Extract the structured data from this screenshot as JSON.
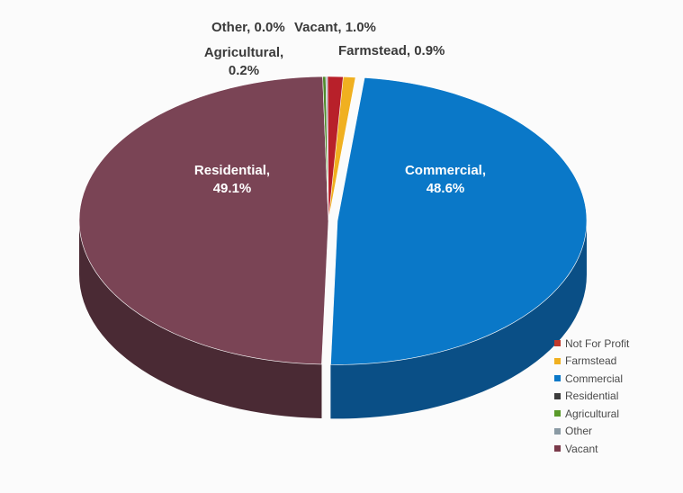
{
  "chart_data": {
    "type": "pie",
    "style": "3d",
    "slices": [
      {
        "label": "Commercial",
        "value": 48.6,
        "data_label": "Commercial,\n48.6%",
        "color": "#0a78c8",
        "side": "#0a4f86",
        "exploded": true
      },
      {
        "label": "Residential",
        "value": 49.1,
        "data_label": "Residential,\n49.1%",
        "color": "#7a4455",
        "side": "#4a2a34",
        "exploded": false
      },
      {
        "label": "Agricultural",
        "value": 0.2,
        "data_label": "Agricultural,\n0.2%",
        "color": "#4f8a2a",
        "side": "#33591b",
        "exploded": false
      },
      {
        "label": "Other",
        "value": 0.0,
        "data_label": "Other, 0.0%",
        "color": "#9aa8b0",
        "side": "#6a7880",
        "exploded": false
      },
      {
        "label": "Vacant",
        "value": 1.0,
        "data_label": "Vacant, 1.0%",
        "color": "#b8202a",
        "side": "#7a141b",
        "exploded": false
      },
      {
        "label": "Farmstead",
        "value": 0.9,
        "data_label": "Farmstead, 0.9%",
        "color": "#f0b020",
        "side": "#b07e10",
        "exploded": false
      }
    ],
    "legend_position": "bottom-right"
  },
  "legend": [
    {
      "label": "Not For Profit",
      "color": "#c0392b"
    },
    {
      "label": "Farmstead",
      "color": "#f0b020"
    },
    {
      "label": "Commercial",
      "color": "#0a78c8"
    },
    {
      "label": "Residential",
      "color": "#3c3c3c"
    },
    {
      "label": "Agricultural",
      "color": "#5a9a2a"
    },
    {
      "label": "Other",
      "color": "#8a9aa4"
    },
    {
      "label": "Vacant",
      "color": "#7a3a4a"
    }
  ]
}
